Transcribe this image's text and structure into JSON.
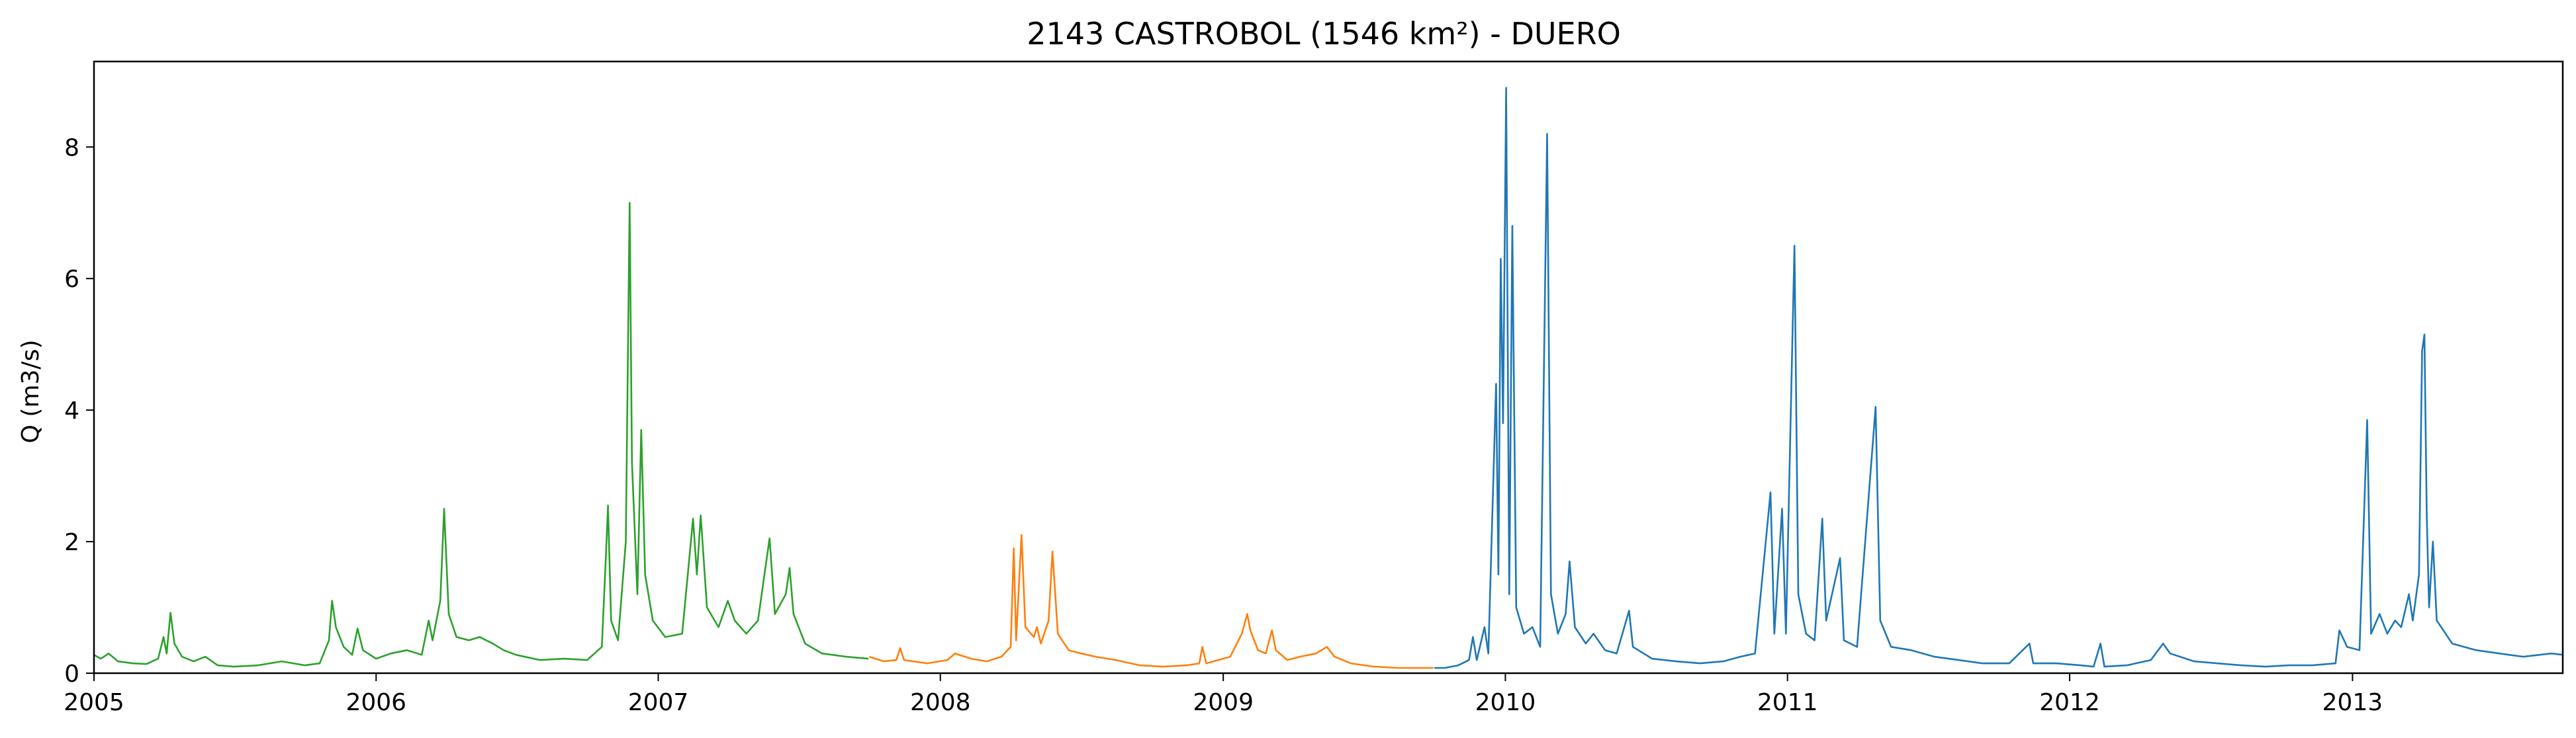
{
  "chart_data": {
    "type": "line",
    "title": "2143 CASTROBOL (1546 km²) - DUERO",
    "xlabel": "",
    "ylabel": "Q (m3/s)",
    "xlim": [
      "2005-01-01",
      "2013-09-30"
    ],
    "ylim": [
      0,
      9.3
    ],
    "x_ticks": [
      "2005",
      "2006",
      "2007",
      "2008",
      "2009",
      "2010",
      "2011",
      "2012",
      "2013"
    ],
    "y_ticks": [
      "0",
      "2",
      "4",
      "6",
      "8"
    ],
    "grid": false,
    "legend": "none",
    "series": [
      {
        "color": "#2ca02c",
        "points": [
          [
            "2005-01-01",
            0.28
          ],
          [
            "2005-01-10",
            0.22
          ],
          [
            "2005-01-20",
            0.3
          ],
          [
            "2005-02-01",
            0.18
          ],
          [
            "2005-02-20",
            0.15
          ],
          [
            "2005-03-10",
            0.14
          ],
          [
            "2005-03-25",
            0.22
          ],
          [
            "2005-04-01",
            0.55
          ],
          [
            "2005-04-05",
            0.3
          ],
          [
            "2005-04-10",
            0.92
          ],
          [
            "2005-04-15",
            0.45
          ],
          [
            "2005-04-25",
            0.25
          ],
          [
            "2005-05-10",
            0.18
          ],
          [
            "2005-05-25",
            0.25
          ],
          [
            "2005-06-10",
            0.12
          ],
          [
            "2005-07-01",
            0.1
          ],
          [
            "2005-08-01",
            0.12
          ],
          [
            "2005-09-01",
            0.18
          ],
          [
            "2005-10-01",
            0.12
          ],
          [
            "2005-10-20",
            0.15
          ],
          [
            "2005-11-01",
            0.5
          ],
          [
            "2005-11-05",
            1.1
          ],
          [
            "2005-11-10",
            0.7
          ],
          [
            "2005-11-20",
            0.4
          ],
          [
            "2005-12-01",
            0.28
          ],
          [
            "2005-12-08",
            0.68
          ],
          [
            "2005-12-15",
            0.35
          ],
          [
            "2006-01-01",
            0.22
          ],
          [
            "2006-01-20",
            0.3
          ],
          [
            "2006-02-10",
            0.35
          ],
          [
            "2006-03-01",
            0.28
          ],
          [
            "2006-03-10",
            0.8
          ],
          [
            "2006-03-15",
            0.5
          ],
          [
            "2006-03-25",
            1.1
          ],
          [
            "2006-03-30",
            2.5
          ],
          [
            "2006-04-05",
            0.9
          ],
          [
            "2006-04-15",
            0.55
          ],
          [
            "2006-05-01",
            0.5
          ],
          [
            "2006-05-15",
            0.55
          ],
          [
            "2006-06-01",
            0.45
          ],
          [
            "2006-06-15",
            0.35
          ],
          [
            "2006-07-01",
            0.28
          ],
          [
            "2006-08-01",
            0.2
          ],
          [
            "2006-09-01",
            0.22
          ],
          [
            "2006-10-01",
            0.2
          ],
          [
            "2006-10-20",
            0.4
          ],
          [
            "2006-10-25",
            1.7
          ],
          [
            "2006-10-28",
            2.55
          ],
          [
            "2006-11-01",
            0.8
          ],
          [
            "2006-11-10",
            0.5
          ],
          [
            "2006-11-20",
            2.0
          ],
          [
            "2006-11-25",
            7.15
          ],
          [
            "2006-11-28",
            3.2
          ],
          [
            "2006-12-05",
            1.2
          ],
          [
            "2006-12-10",
            3.7
          ],
          [
            "2006-12-15",
            1.5
          ],
          [
            "2006-12-25",
            0.8
          ],
          [
            "2007-01-10",
            0.55
          ],
          [
            "2007-02-01",
            0.6
          ],
          [
            "2007-02-15",
            2.35
          ],
          [
            "2007-02-20",
            1.5
          ],
          [
            "2007-02-25",
            2.4
          ],
          [
            "2007-03-05",
            1.0
          ],
          [
            "2007-03-20",
            0.7
          ],
          [
            "2007-04-01",
            1.1
          ],
          [
            "2007-04-10",
            0.8
          ],
          [
            "2007-04-25",
            0.6
          ],
          [
            "2007-05-10",
            0.8
          ],
          [
            "2007-05-25",
            2.05
          ],
          [
            "2007-06-01",
            0.9
          ],
          [
            "2007-06-15",
            1.2
          ],
          [
            "2007-06-20",
            1.6
          ],
          [
            "2007-06-25",
            0.9
          ],
          [
            "2007-07-10",
            0.45
          ],
          [
            "2007-08-01",
            0.3
          ],
          [
            "2007-09-01",
            0.25
          ],
          [
            "2007-09-30",
            0.22
          ]
        ]
      },
      {
        "color": "#ff7f0e",
        "points": [
          [
            "2007-10-01",
            0.25
          ],
          [
            "2007-10-20",
            0.18
          ],
          [
            "2007-11-05",
            0.2
          ],
          [
            "2007-11-10",
            0.38
          ],
          [
            "2007-11-15",
            0.2
          ],
          [
            "2007-12-15",
            0.15
          ],
          [
            "2008-01-10",
            0.2
          ],
          [
            "2008-01-20",
            0.3
          ],
          [
            "2008-02-10",
            0.22
          ],
          [
            "2008-03-01",
            0.18
          ],
          [
            "2008-03-20",
            0.25
          ],
          [
            "2008-04-01",
            0.4
          ],
          [
            "2008-04-05",
            1.9
          ],
          [
            "2008-04-08",
            0.5
          ],
          [
            "2008-04-15",
            2.1
          ],
          [
            "2008-04-20",
            0.7
          ],
          [
            "2008-05-01",
            0.55
          ],
          [
            "2008-05-05",
            0.7
          ],
          [
            "2008-05-10",
            0.45
          ],
          [
            "2008-05-20",
            0.8
          ],
          [
            "2008-05-25",
            1.85
          ],
          [
            "2008-06-01",
            0.6
          ],
          [
            "2008-06-15",
            0.35
          ],
          [
            "2008-07-01",
            0.3
          ],
          [
            "2008-07-20",
            0.25
          ],
          [
            "2008-08-15",
            0.2
          ],
          [
            "2008-09-15",
            0.12
          ],
          [
            "2008-10-15",
            0.1
          ],
          [
            "2008-11-15",
            0.12
          ],
          [
            "2008-12-01",
            0.15
          ],
          [
            "2008-12-05",
            0.4
          ],
          [
            "2008-12-10",
            0.15
          ],
          [
            "2009-01-10",
            0.25
          ],
          [
            "2009-01-25",
            0.6
          ],
          [
            "2009-02-01",
            0.9
          ],
          [
            "2009-02-05",
            0.65
          ],
          [
            "2009-02-15",
            0.35
          ],
          [
            "2009-02-25",
            0.3
          ],
          [
            "2009-03-05",
            0.65
          ],
          [
            "2009-03-10",
            0.35
          ],
          [
            "2009-03-25",
            0.2
          ],
          [
            "2009-04-10",
            0.25
          ],
          [
            "2009-05-01",
            0.3
          ],
          [
            "2009-05-15",
            0.4
          ],
          [
            "2009-05-25",
            0.25
          ],
          [
            "2009-06-15",
            0.15
          ],
          [
            "2009-07-15",
            0.1
          ],
          [
            "2009-08-15",
            0.08
          ],
          [
            "2009-09-30",
            0.08
          ]
        ]
      },
      {
        "color": "#1f77b4",
        "points": [
          [
            "2009-10-01",
            0.08
          ],
          [
            "2009-10-15",
            0.08
          ],
          [
            "2009-11-01",
            0.12
          ],
          [
            "2009-11-15",
            0.2
          ],
          [
            "2009-11-20",
            0.55
          ],
          [
            "2009-11-25",
            0.2
          ],
          [
            "2009-12-05",
            0.7
          ],
          [
            "2009-12-10",
            0.3
          ],
          [
            "2009-12-20",
            4.4
          ],
          [
            "2009-12-23",
            1.5
          ],
          [
            "2009-12-26",
            6.3
          ],
          [
            "2009-12-29",
            3.8
          ],
          [
            "2010-01-02",
            8.9
          ],
          [
            "2010-01-06",
            1.2
          ],
          [
            "2010-01-10",
            6.8
          ],
          [
            "2010-01-15",
            1.0
          ],
          [
            "2010-01-25",
            0.6
          ],
          [
            "2010-02-05",
            0.7
          ],
          [
            "2010-02-15",
            0.4
          ],
          [
            "2010-02-24",
            8.2
          ],
          [
            "2010-03-01",
            1.2
          ],
          [
            "2010-03-10",
            0.6
          ],
          [
            "2010-03-20",
            0.9
          ],
          [
            "2010-03-25",
            1.7
          ],
          [
            "2010-04-01",
            0.7
          ],
          [
            "2010-04-15",
            0.45
          ],
          [
            "2010-04-25",
            0.6
          ],
          [
            "2010-05-10",
            0.35
          ],
          [
            "2010-05-25",
            0.3
          ],
          [
            "2010-06-10",
            0.95
          ],
          [
            "2010-06-15",
            0.4
          ],
          [
            "2010-07-10",
            0.22
          ],
          [
            "2010-08-10",
            0.18
          ],
          [
            "2010-09-10",
            0.15
          ],
          [
            "2010-10-10",
            0.18
          ],
          [
            "2010-11-01",
            0.25
          ],
          [
            "2010-11-20",
            0.3
          ],
          [
            "2010-12-10",
            2.75
          ],
          [
            "2010-12-15",
            0.6
          ],
          [
            "2010-12-25",
            2.5
          ],
          [
            "2010-12-30",
            0.6
          ],
          [
            "2011-01-10",
            6.5
          ],
          [
            "2011-01-15",
            1.2
          ],
          [
            "2011-01-25",
            0.6
          ],
          [
            "2011-02-05",
            0.5
          ],
          [
            "2011-02-15",
            2.35
          ],
          [
            "2011-02-20",
            0.8
          ],
          [
            "2011-03-10",
            1.75
          ],
          [
            "2011-03-15",
            0.5
          ],
          [
            "2011-04-01",
            0.4
          ],
          [
            "2011-04-25",
            4.05
          ],
          [
            "2011-05-01",
            0.8
          ],
          [
            "2011-05-15",
            0.4
          ],
          [
            "2011-06-10",
            0.35
          ],
          [
            "2011-07-10",
            0.25
          ],
          [
            "2011-08-10",
            0.2
          ],
          [
            "2011-09-10",
            0.15
          ],
          [
            "2011-10-15",
            0.15
          ],
          [
            "2011-11-10",
            0.45
          ],
          [
            "2011-11-15",
            0.15
          ],
          [
            "2011-12-15",
            0.15
          ],
          [
            "2012-01-15",
            0.12
          ],
          [
            "2012-02-01",
            0.1
          ],
          [
            "2012-02-10",
            0.45
          ],
          [
            "2012-02-15",
            0.1
          ],
          [
            "2012-03-15",
            0.12
          ],
          [
            "2012-04-15",
            0.2
          ],
          [
            "2012-05-01",
            0.45
          ],
          [
            "2012-05-10",
            0.3
          ],
          [
            "2012-06-10",
            0.18
          ],
          [
            "2012-07-10",
            0.15
          ],
          [
            "2012-08-10",
            0.12
          ],
          [
            "2012-09-10",
            0.1
          ],
          [
            "2012-10-10",
            0.12
          ],
          [
            "2012-11-10",
            0.12
          ],
          [
            "2012-12-10",
            0.15
          ],
          [
            "2012-12-15",
            0.65
          ],
          [
            "2012-12-25",
            0.4
          ],
          [
            "2013-01-10",
            0.35
          ],
          [
            "2013-01-20",
            3.85
          ],
          [
            "2013-01-25",
            0.6
          ],
          [
            "2013-02-05",
            0.9
          ],
          [
            "2013-02-15",
            0.6
          ],
          [
            "2013-02-25",
            0.8
          ],
          [
            "2013-03-05",
            0.7
          ],
          [
            "2013-03-15",
            1.2
          ],
          [
            "2013-03-20",
            0.8
          ],
          [
            "2013-03-28",
            1.5
          ],
          [
            "2013-04-01",
            4.9
          ],
          [
            "2013-04-04",
            5.15
          ],
          [
            "2013-04-07",
            2.4
          ],
          [
            "2013-04-10",
            1.0
          ],
          [
            "2013-04-15",
            2.0
          ],
          [
            "2013-04-20",
            0.8
          ],
          [
            "2013-05-10",
            0.45
          ],
          [
            "2013-06-10",
            0.35
          ],
          [
            "2013-07-10",
            0.3
          ],
          [
            "2013-08-10",
            0.25
          ],
          [
            "2013-09-15",
            0.3
          ],
          [
            "2013-09-30",
            0.28
          ]
        ]
      }
    ]
  }
}
